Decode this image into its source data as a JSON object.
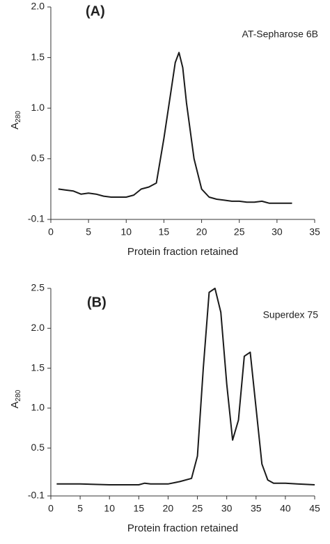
{
  "chart_data": [
    {
      "type": "line",
      "panel_label": "(A)",
      "annotation": "AT-Sepharose 6B",
      "xlabel": "Protein fraction retained",
      "ylabel": "A",
      "ylabel_subscript": "280",
      "xlim": [
        0,
        35
      ],
      "xticks": [
        0,
        5,
        10,
        15,
        20,
        25,
        30,
        35
      ],
      "ylim": [
        -0.1,
        2.0
      ],
      "yticks": [
        -0.1,
        0.5,
        {
          "value": 1,
          "label": "1.0"
        },
        1.5,
        {
          "value": 2,
          "label": "2.0"
        }
      ],
      "series": [
        {
          "color": "#1a1a1a",
          "x": [
            1,
            2,
            3,
            4,
            5,
            6,
            7,
            8,
            9,
            10,
            11,
            12,
            13,
            14,
            15,
            16,
            16.5,
            17,
            17.5,
            18,
            19,
            20,
            21,
            22,
            23,
            24,
            25,
            26,
            27,
            28,
            29,
            30,
            31,
            32
          ],
          "values": [
            0.2,
            0.19,
            0.18,
            0.15,
            0.16,
            0.15,
            0.13,
            0.12,
            0.12,
            0.12,
            0.14,
            0.2,
            0.22,
            0.26,
            0.7,
            1.2,
            1.45,
            1.55,
            1.4,
            1.05,
            0.5,
            0.2,
            0.12,
            0.1,
            0.09,
            0.08,
            0.08,
            0.07,
            0.07,
            0.08,
            0.06,
            0.06,
            0.06,
            0.06
          ]
        }
      ]
    },
    {
      "type": "line",
      "panel_label": "(B)",
      "annotation": "Superdex 75",
      "xlabel": "Protein fraction retained",
      "ylabel": "A",
      "ylabel_subscript": "280",
      "xlim": [
        0,
        45
      ],
      "xticks": [
        0,
        5,
        10,
        15,
        20,
        25,
        30,
        35,
        40,
        45
      ],
      "ylim": [
        -0.1,
        2.5
      ],
      "yticks": [
        -0.1,
        0.5,
        {
          "value": 1,
          "label": "1.0"
        },
        1.5,
        {
          "value": 2,
          "label": "2.0"
        },
        2.5
      ],
      "series": [
        {
          "color": "#1a1a1a",
          "x": [
            1,
            5,
            10,
            15,
            16,
            17,
            20,
            22,
            24,
            25,
            26,
            27,
            28,
            29,
            30,
            31,
            32,
            33,
            34,
            35,
            36,
            37,
            38,
            40,
            42,
            45
          ],
          "values": [
            0.05,
            0.05,
            0.04,
            0.04,
            0.06,
            0.05,
            0.05,
            0.08,
            0.12,
            0.4,
            1.5,
            2.45,
            2.5,
            2.2,
            1.3,
            0.6,
            0.85,
            1.65,
            1.7,
            1.0,
            0.3,
            0.1,
            0.06,
            0.06,
            0.05,
            0.04
          ]
        }
      ]
    }
  ]
}
